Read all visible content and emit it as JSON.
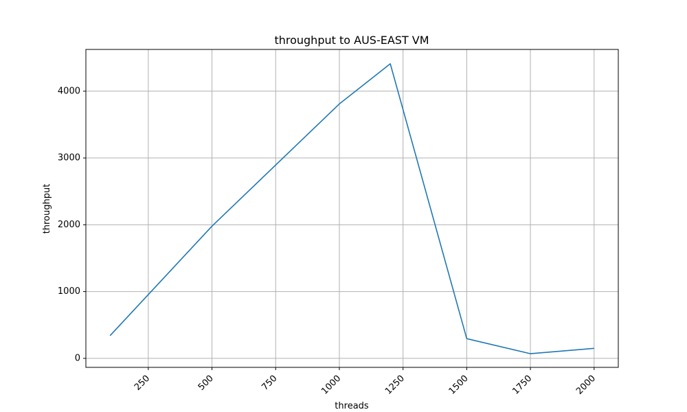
{
  "chart_data": {
    "type": "line",
    "title": "throughput to AUS-EAST VM",
    "xlabel": "threads",
    "ylabel": "throughput",
    "xlim": [
      5,
      2095
    ],
    "ylim": [
      -135,
      4625
    ],
    "grid": true,
    "xticks": [
      250,
      500,
      750,
      1000,
      1250,
      1500,
      1750,
      2000
    ],
    "xtick_labels": [
      "250",
      "500",
      "750",
      "1000",
      "1250",
      "1500",
      "1750",
      "2000"
    ],
    "yticks": [
      0,
      1000,
      2000,
      3000,
      4000
    ],
    "ytick_labels": [
      "0",
      "1000",
      "2000",
      "3000",
      "4000"
    ],
    "series": [
      {
        "color": "#1f77b4",
        "x": [
          100,
          500,
          1000,
          1200,
          1500,
          1750,
          2000
        ],
        "y": [
          340,
          1980,
          3810,
          4410,
          295,
          70,
          150
        ]
      }
    ]
  },
  "colors": {
    "grid": "#b0b0b0",
    "axes": "#000000",
    "line": "#1f77b4"
  }
}
